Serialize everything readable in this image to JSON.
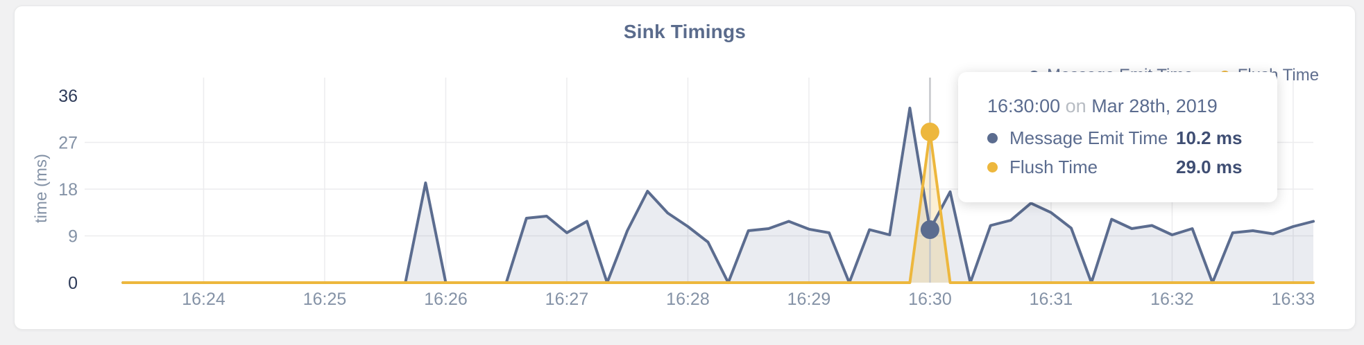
{
  "title": "Sink Timings",
  "legend": [
    {
      "label": "Message Emit Time",
      "color": "#5b6c8f"
    },
    {
      "label": "Flush Time",
      "color": "#edb73d"
    }
  ],
  "tooltip": {
    "time": "16:30:00",
    "conjunction": "on",
    "date": "Mar 28th, 2019",
    "rows": [
      {
        "label": "Message Emit Time",
        "value": "10.2 ms",
        "color": "#5b6c8f"
      },
      {
        "label": "Flush Time",
        "value": "29.0 ms",
        "color": "#edb73d"
      }
    ]
  },
  "colors": {
    "title": "#5a6b8c",
    "emit": "#5b6c8f",
    "flush": "#edb73d",
    "emit_area": "rgba(91,108,143,0.13)",
    "flush_area": "rgba(237,183,61,0.22)",
    "grid": "#ececee",
    "axis_tick": "#8492a6",
    "axis_strong": "#2d3a58",
    "crosshair": "#c5c7cb",
    "card_bg": "#ffffff",
    "page_bg": "#f1f1f2"
  },
  "chart_data": {
    "type": "area",
    "title": "Sink Timings",
    "xlabel": "",
    "ylabel": "time (ms)",
    "ylim": [
      0,
      36
    ],
    "yticks": [
      0,
      9,
      18,
      27,
      36
    ],
    "xticks": [
      "16:24",
      "16:25",
      "16:26",
      "16:27",
      "16:28",
      "16:29",
      "16:30",
      "16:31",
      "16:32",
      "16:33"
    ],
    "grid": true,
    "legend_position": "top-right",
    "x_start": "16:23:20",
    "x_start_sec": 20,
    "x_interval_sec": 10,
    "highlight_index": 40,
    "highlight_time": "16:30:00",
    "series": [
      {
        "name": "Message Emit Time",
        "color": "#5b6c8f",
        "area": "rgba(91,108,143,0.13)",
        "values": [
          0,
          0,
          0,
          0,
          0,
          0,
          0,
          0,
          0,
          0,
          0,
          0,
          0,
          0,
          0,
          19.2,
          0,
          0,
          0,
          0,
          12.4,
          12.8,
          9.6,
          11.8,
          0,
          10,
          17.6,
          13.4,
          10.8,
          7.8,
          0,
          10,
          10.4,
          11.8,
          10.3,
          9.6,
          0,
          10.2,
          9.2,
          33.6,
          10.2,
          17.5,
          0,
          11,
          12,
          15.3,
          13.5,
          10.5,
          0,
          12.2,
          10.4,
          11,
          9.2,
          10.4,
          0,
          9.6,
          10,
          9.4,
          10.8,
          11.8
        ]
      },
      {
        "name": "Flush Time",
        "color": "#edb73d",
        "area": "rgba(237,183,61,0.22)",
        "values": [
          0,
          0,
          0,
          0,
          0,
          0,
          0,
          0,
          0,
          0,
          0,
          0,
          0,
          0,
          0,
          0,
          0,
          0,
          0,
          0,
          0,
          0,
          0,
          0,
          0,
          0,
          0,
          0,
          0,
          0,
          0,
          0,
          0,
          0,
          0,
          0,
          0,
          0,
          0,
          0,
          29,
          0,
          0,
          0,
          0,
          0,
          0,
          0,
          0,
          0,
          0,
          0,
          0,
          0,
          0,
          0,
          0,
          0,
          0,
          0
        ]
      }
    ]
  }
}
